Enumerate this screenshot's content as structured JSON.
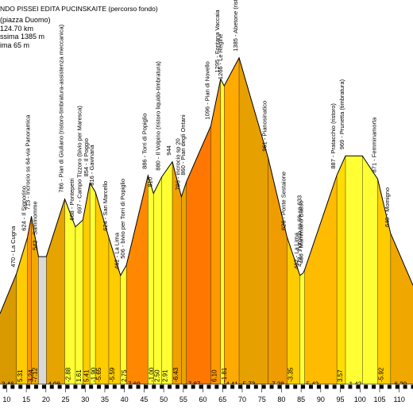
{
  "chart_data": {
    "type": "area",
    "title": "NDO PISSEI EDITA PUCINSKAITE (percorso fondo)",
    "info_lines": [
      "(piazza Duomo)",
      "124.70 km",
      "ssima 1385 m",
      "ima 65 m"
    ],
    "x_ticks": [
      10,
      15,
      20,
      25,
      30,
      35,
      40,
      45,
      50,
      55,
      60,
      65,
      70,
      75,
      80,
      85,
      90,
      95,
      100,
      105,
      110
    ],
    "xlim": [
      8.3,
      113.5
    ],
    "ylim": [
      0,
      1630
    ],
    "profile": [
      [
        8.3,
        300
      ],
      [
        12.5,
        470
      ],
      [
        15.3,
        624
      ],
      [
        16.3,
        713
      ],
      [
        18.1,
        542
      ],
      [
        20.1,
        542
      ],
      [
        24.8,
        786
      ],
      [
        27.5,
        668
      ],
      [
        29.4,
        697
      ],
      [
        31.2,
        854
      ],
      [
        32.6,
        816
      ],
      [
        36.0,
        624
      ],
      [
        39.0,
        462
      ],
      [
        40.5,
        506
      ],
      [
        46.0,
        886
      ],
      [
        47.4,
        810
      ],
      [
        49.5,
        880
      ],
      [
        52.2,
        944
      ],
      [
        54.5,
        796
      ],
      [
        55.8,
        860
      ],
      [
        62.0,
        1096
      ],
      [
        64.5,
        1295
      ],
      [
        65.4,
        1266
      ],
      [
        69.2,
        1385
      ],
      [
        76.6,
        961
      ],
      [
        81.4,
        626
      ],
      [
        84.7,
        462
      ],
      [
        85.5,
        472
      ],
      [
        85.9,
        486
      ],
      [
        94.1,
        887
      ],
      [
        96.3,
        969
      ],
      [
        100.6,
        969
      ],
      [
        104.5,
        871
      ],
      [
        107.8,
        640
      ],
      [
        113.5,
        420
      ]
    ],
    "profile_label": [
      "470 - La Cugna",
      "624 - Il Signorino",
      "713 - Incrocio ss 64-via Panoramica",
      "542 - Sammomme",
      "786 - Pian di Giuliano (ristoro-timbratura-assistenza meccanica)",
      "668 - Pontepetri",
      "697 - Campo Tizzoro (bivio per Maresca)",
      "854 - Il Poggio",
      "816 - Gavinana",
      "624 - San Marcello",
      "462 - La Lima",
      "506 - bivio per Torri di Popiglio",
      "886 - Torri di Popiglio",
      "810",
      "880 - Il Volpino (ristoro liquido-timbratura)",
      "944",
      "796 - incrocio sp 20",
      "860 - Pian degli Ontani",
      "1096 - Pian di Novello",
      "1295 - Fontana Vaccaia",
      "1266 - Le Regine",
      "1385 - Abetone (ristoro-timbratura-assistenza meccanica)",
      "961 - Pianosinatico",
      "626 - Ponte Sestaione",
      "462 - La Lima",
      "472 - incrocio ss 66-sp 633",
      "486 - Mammiano Basso",
      "887 - Pratacchio (ristoro)",
      "969 - Prunetta (timbratura)",
      "871 - Femminamorta",
      "640 - Momigno"
    ],
    "segments": [
      {
        "x0": 8.3,
        "x1": 12.5,
        "grade": "3.46",
        "color": "#d99a00"
      },
      {
        "x0": 12.5,
        "x1": 15.3,
        "grade": "5.31",
        "color": "#ffcc00"
      },
      {
        "x0": 15.3,
        "x1": 16.3,
        "grade": "3.24",
        "color": "#ff9900"
      },
      {
        "x0": 16.3,
        "x1": 18.1,
        "grade": "-7.12",
        "color": "#f2a800"
      },
      {
        "x0": 18.1,
        "x1": 20.1,
        "grade": "0",
        "color": "#d9d9d9"
      },
      {
        "x0": 20.1,
        "x1": 24.8,
        "grade": "4.98",
        "color": "#e6a400"
      },
      {
        "x0": 24.8,
        "x1": 27.5,
        "grade": "-2.88",
        "color": "#ffff33"
      },
      {
        "x0": 27.5,
        "x1": 29.4,
        "grade": "1.61",
        "color": "#ffff33"
      },
      {
        "x0": 29.4,
        "x1": 31.2,
        "grade": "5.41",
        "color": "#ffcc00"
      },
      {
        "x0": 31.2,
        "x1": 32.6,
        "grade": "-1.90",
        "color": "#ffff33"
      },
      {
        "x0": 32.6,
        "x1": 36.0,
        "grade": "-5.65",
        "color": "#ffcc00"
      },
      {
        "x0": 36.0,
        "x1": 39.0,
        "grade": "-5.59",
        "color": "#ffcc00"
      },
      {
        "x0": 39.0,
        "x1": 40.5,
        "grade": "2.75",
        "color": "#ffff33"
      },
      {
        "x0": 40.5,
        "x1": 46.0,
        "grade": "7.60",
        "color": "#ff8800"
      },
      {
        "x0": 46.0,
        "x1": 47.4,
        "grade": "-1.00",
        "color": "#ffff33"
      },
      {
        "x0": 47.4,
        "x1": 49.5,
        "grade": "2.50",
        "color": "#ffff33"
      },
      {
        "x0": 49.5,
        "x1": 52.2,
        "grade": "2.91",
        "color": "#ffff33"
      },
      {
        "x0": 52.2,
        "x1": 54.5,
        "grade": "-6.43",
        "color": "#f0a000"
      },
      {
        "x0": 54.5,
        "x1": 55.8,
        "grade": "0",
        "color": "#e6a400"
      },
      {
        "x0": 55.8,
        "x1": 62.0,
        "grade": "7.87",
        "color": "#ff7700"
      },
      {
        "x0": 62.0,
        "x1": 64.5,
        "grade": "6.10",
        "color": "#ff9900"
      },
      {
        "x0": 64.5,
        "x1": 65.4,
        "grade": "-1.81",
        "color": "#ffff33"
      },
      {
        "x0": 65.4,
        "x1": 69.2,
        "grade": "4.41",
        "color": "#ffaa00"
      },
      {
        "x0": 69.2,
        "x1": 76.6,
        "grade": "-5.73",
        "color": "#e6a000"
      },
      {
        "x0": 76.6,
        "x1": 81.4,
        "grade": "-7.28",
        "color": "#ee9c00"
      },
      {
        "x0": 81.4,
        "x1": 84.7,
        "grade": "-3.35",
        "color": "#ffcc00"
      },
      {
        "x0": 84.7,
        "x1": 85.9,
        "grade": "0",
        "color": "#ffff33"
      },
      {
        "x0": 85.9,
        "x1": 94.1,
        "grade": "5.42",
        "color": "#ffbb00"
      },
      {
        "x0": 94.1,
        "x1": 96.3,
        "grade": "3.57",
        "color": "#ffdd00"
      },
      {
        "x0": 96.3,
        "x1": 100.6,
        "grade": "-1.42",
        "color": "#ffff33"
      },
      {
        "x0": 100.6,
        "x1": 104.5,
        "grade": "0",
        "color": "#ffff33"
      },
      {
        "x0": 104.5,
        "x1": 107.8,
        "grade": "-5.92",
        "color": "#ffcc00"
      },
      {
        "x0": 107.8,
        "x1": 113.5,
        "grade": "-6.20",
        "color": "#f0a800"
      }
    ],
    "visible_grades": [
      "3.46",
      "5.31",
      "3.24",
      "-7.12",
      "4.98",
      "-2.88",
      "1.61",
      "5.41",
      "-1.90",
      "-5.65",
      "-5.59",
      "2.75",
      "7.60",
      "-1.00",
      "2.50",
      "2.91",
      "-6.43",
      "7.87",
      "6.10",
      "-1.81",
      "4.41",
      "-5.73",
      "-7.28",
      "-3.35",
      "5.42",
      "3.57",
      "-1.42",
      "-5.92",
      "-6.20"
    ]
  }
}
